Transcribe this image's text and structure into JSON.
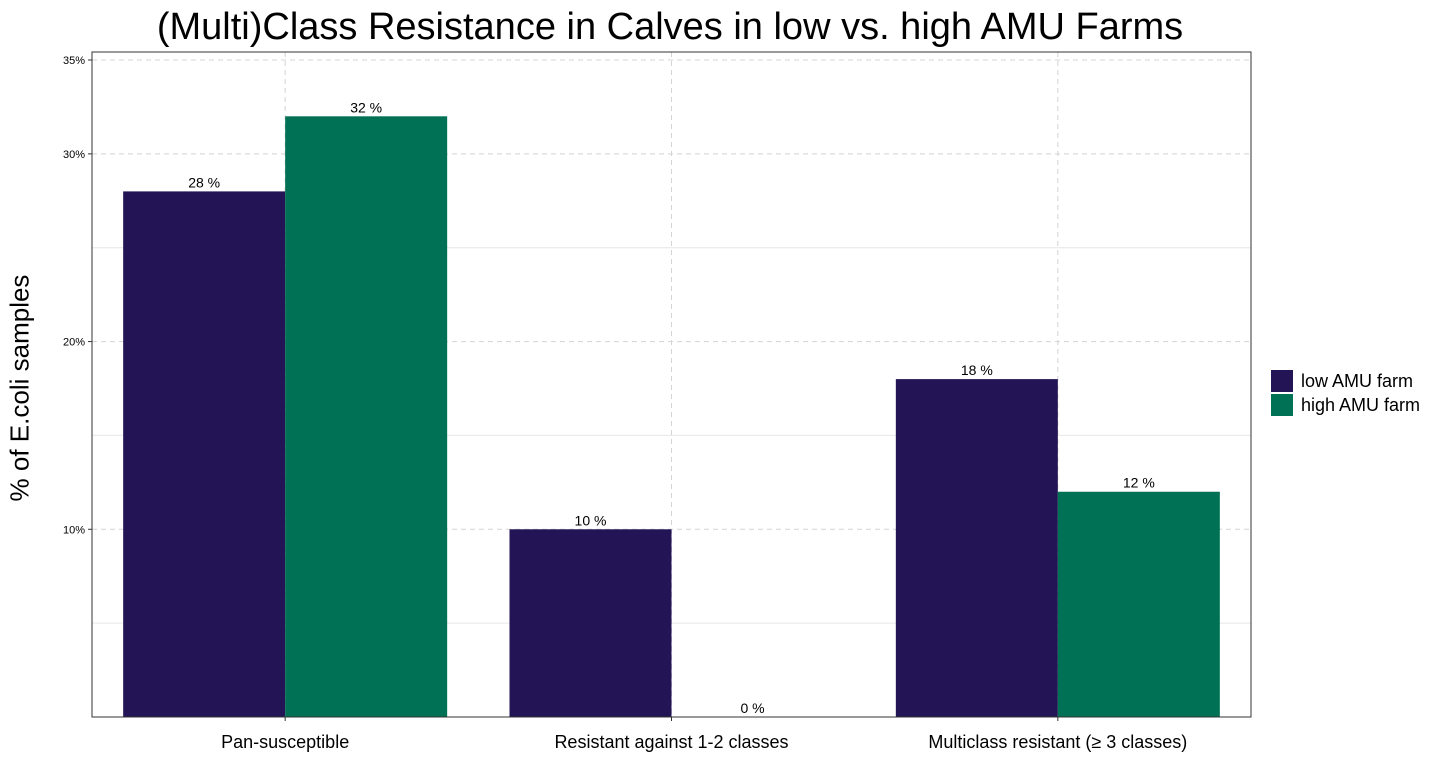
{
  "chart_data": {
    "type": "bar",
    "title": "(Multi)Class Resistance in Calves in low vs. high AMU Farms",
    "xlabel": "",
    "ylabel": "% of E.coli samples",
    "categories": [
      "Pan-susceptible",
      "Resistant against 1-2 classes",
      "Multiclass resistant (≥ 3 classes)"
    ],
    "series": [
      {
        "name": "low AMU farm",
        "values": [
          28,
          10,
          18
        ],
        "labels": [
          "28 %",
          "10 %",
          "18 %"
        ],
        "color": "#221455"
      },
      {
        "name": "high AMU farm",
        "values": [
          32,
          0,
          12
        ],
        "labels": [
          "32 %",
          "0 %",
          "12 %"
        ],
        "color": "#007155"
      }
    ],
    "ylim": [
      0,
      35
    ],
    "yticks": [
      10,
      20,
      30,
      35
    ],
    "ytick_labels": [
      "10%",
      "20%",
      "30%",
      "35%"
    ],
    "grid": true,
    "legend_position": "right"
  }
}
